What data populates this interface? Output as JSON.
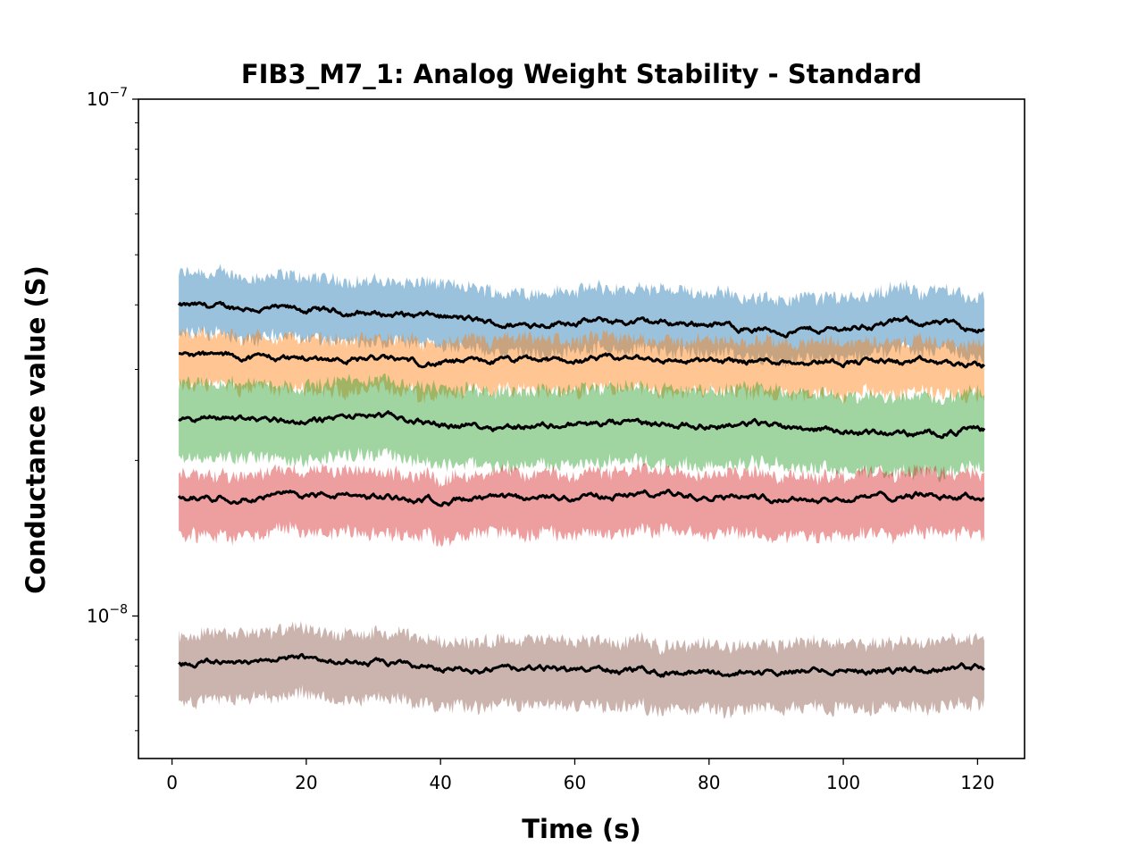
{
  "chart_data": {
    "type": "area",
    "title": "FIB3_M7_1: Analog Weight Stability - Standard",
    "xlabel": "Time (s)",
    "ylabel": "Conductance value (S)",
    "x_range": [
      1,
      121
    ],
    "xlim": [
      -5,
      127
    ],
    "ylim": [
      5.3e-09,
      1e-07
    ],
    "y_scale": "log",
    "x_ticks": [
      0,
      20,
      40,
      60,
      80,
      100,
      120
    ],
    "x_tick_labels": [
      "0",
      "20",
      "40",
      "60",
      "80",
      "100",
      "120"
    ],
    "y_major_ticks": [
      {
        "base": "10",
        "exp": "−8",
        "value": 1e-08
      },
      {
        "base": "10",
        "exp": "−7",
        "value": 1e-07
      }
    ],
    "grid": false,
    "legend": "none",
    "median_line_color": "#000000",
    "series": [
      {
        "color": "#1f77b4",
        "mean_t": [
          1,
          10,
          20,
          30,
          40,
          50,
          60,
          70,
          80,
          90,
          100,
          110,
          121
        ],
        "mean": [
          3.98e-08,
          3.95e-08,
          3.9e-08,
          3.85e-08,
          3.8e-08,
          3.65e-08,
          3.72e-08,
          3.7e-08,
          3.68e-08,
          3.55e-08,
          3.6e-08,
          3.72e-08,
          3.6e-08
        ],
        "band_low_ratio": 0.89,
        "band_high_ratio": 1.14
      },
      {
        "color": "#ff7f0e",
        "mean_t": [
          1,
          10,
          20,
          30,
          40,
          50,
          60,
          70,
          80,
          90,
          100,
          110,
          121
        ],
        "mean": [
          3.2e-08,
          3.18e-08,
          3.15e-08,
          3.15e-08,
          3.08e-08,
          3.12e-08,
          3.12e-08,
          3.15e-08,
          3.1e-08,
          3.12e-08,
          3.12e-08,
          3.1e-08,
          3.05e-08
        ],
        "band_low_ratio": 0.88,
        "band_high_ratio": 1.08
      },
      {
        "color": "#2ca02c",
        "mean_t": [
          1,
          10,
          20,
          30,
          40,
          50,
          60,
          70,
          80,
          90,
          100,
          110,
          121
        ],
        "mean": [
          2.4e-08,
          2.42e-08,
          2.38e-08,
          2.45e-08,
          2.35e-08,
          2.33e-08,
          2.35e-08,
          2.35e-08,
          2.35e-08,
          2.35e-08,
          2.28e-08,
          2.25e-08,
          2.3e-08
        ],
        "band_low_ratio": 0.85,
        "band_high_ratio": 1.16
      },
      {
        "color": "#d62728",
        "mean_t": [
          1,
          10,
          20,
          30,
          40,
          50,
          60,
          70,
          80,
          90,
          100,
          110,
          121
        ],
        "mean": [
          1.7e-08,
          1.7e-08,
          1.72e-08,
          1.7e-08,
          1.68e-08,
          1.68e-08,
          1.7e-08,
          1.72e-08,
          1.72e-08,
          1.7e-08,
          1.68e-08,
          1.72e-08,
          1.7e-08
        ],
        "band_low_ratio": 0.86,
        "band_high_ratio": 1.1
      },
      {
        "color": "#8c564b",
        "mean_t": [
          1,
          10,
          20,
          30,
          40,
          50,
          60,
          70,
          80,
          90,
          100,
          110,
          121
        ],
        "mean": [
          8.1e-09,
          8.2e-09,
          8.3e-09,
          8.1e-09,
          7.95e-09,
          7.85e-09,
          7.9e-09,
          7.85e-09,
          7.75e-09,
          7.8e-09,
          7.9e-09,
          7.85e-09,
          8e-09
        ],
        "band_low_ratio": 0.86,
        "band_high_ratio": 1.12
      }
    ]
  }
}
